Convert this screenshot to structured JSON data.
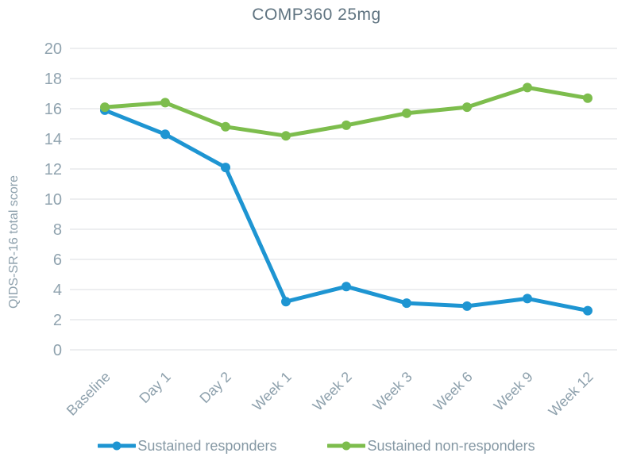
{
  "title": "COMP360 25mg",
  "chart_data": {
    "type": "line",
    "title": "COMP360 25mg",
    "xlabel": "",
    "ylabel": "QIDS-SR-16 total score",
    "ylim": [
      0,
      20
    ],
    "ytick_step": 2,
    "grid": "horizontal-only",
    "legend_position": "bottom-center",
    "categories": [
      "Baseline",
      "Day 1",
      "Day 2",
      "Week 1",
      "Week 2",
      "Week 3",
      "Week 6",
      "Week 9",
      "Week 12"
    ],
    "series": [
      {
        "name": "Sustained responders",
        "color": "#1e95d2",
        "marker": "circle",
        "values": [
          15.9,
          14.3,
          12.1,
          3.2,
          4.2,
          3.1,
          2.9,
          3.4,
          2.6
        ]
      },
      {
        "name": "Sustained non-responders",
        "color": "#7dbd4d",
        "marker": "circle",
        "values": [
          16.1,
          16.4,
          14.8,
          14.2,
          14.9,
          15.7,
          16.1,
          17.4,
          16.7
        ]
      }
    ]
  },
  "colors": {
    "background": "#ffffff",
    "title_text": "#5f7380",
    "axis_tick_text": "#90a3af",
    "axis_label_text": "#8da0ac",
    "legend_text": "#8598a4",
    "gridline": "#e2e4e6"
  }
}
